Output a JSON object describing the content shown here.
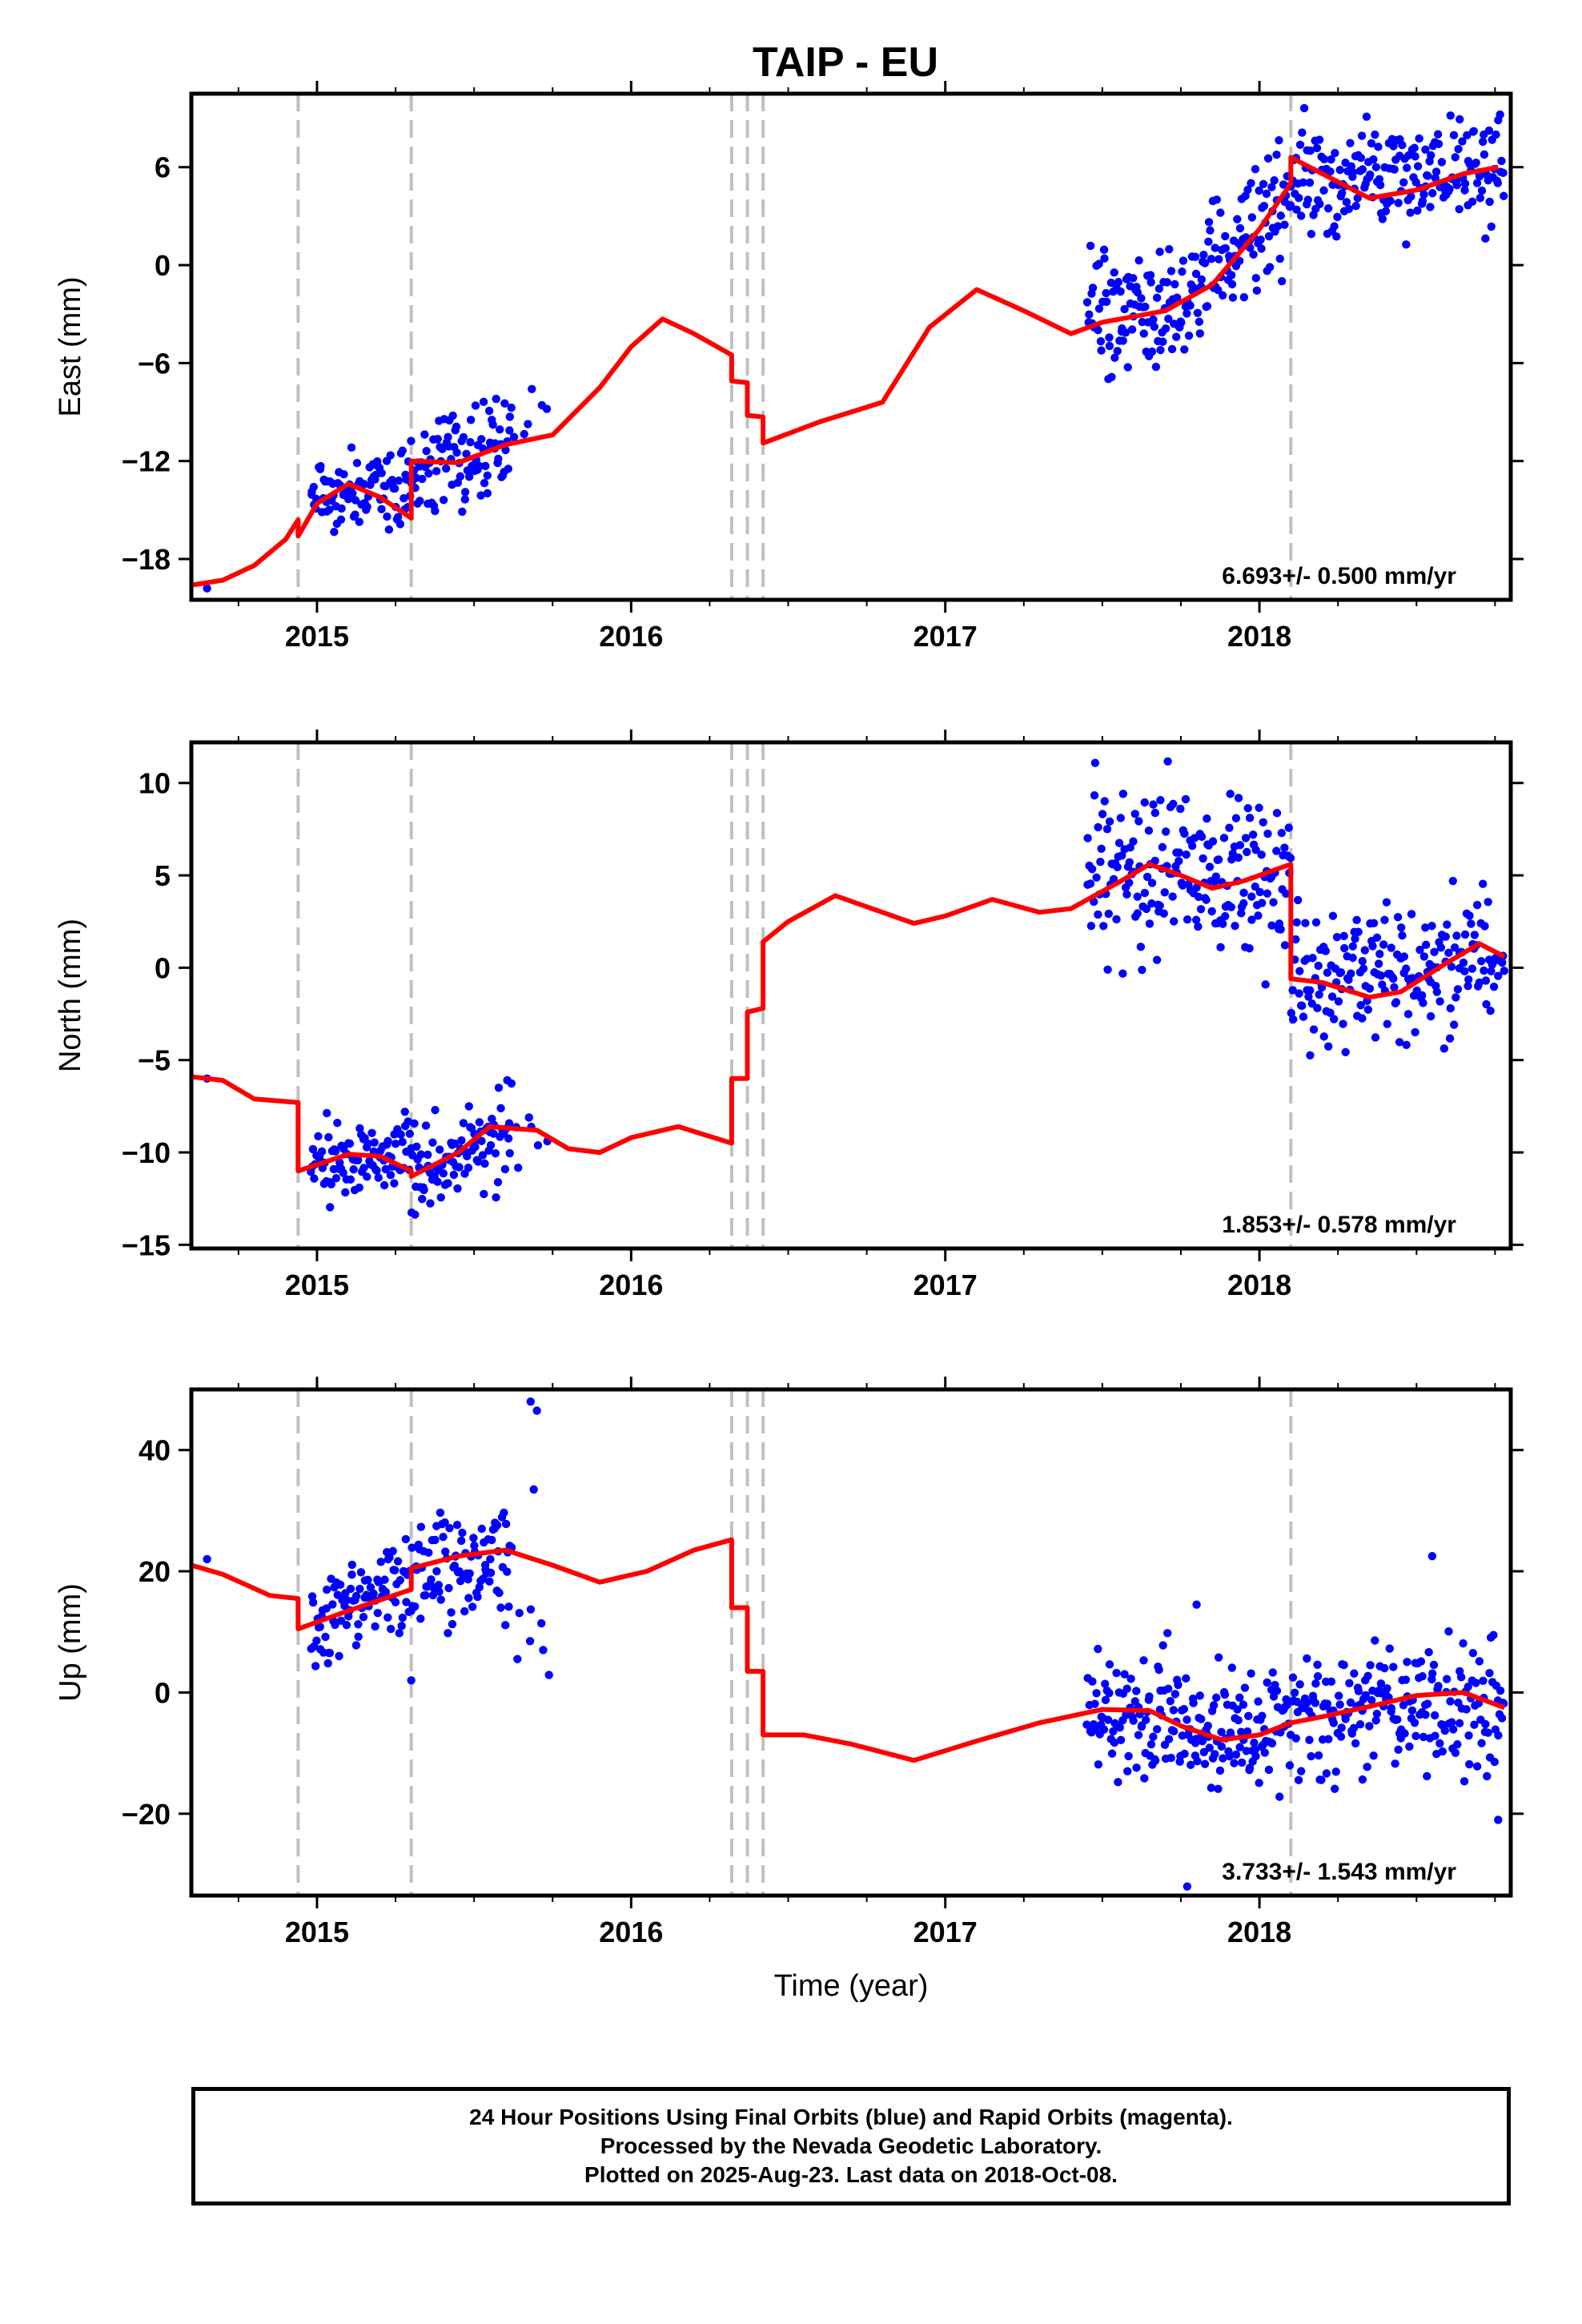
{
  "title": "TAIP - EU",
  "xlabel": "Time (year)",
  "caption": [
    "24 Hour Positions Using Final Orbits (blue) and Rapid Orbits (magenta).",
    "Processed by the Nevada Geodetic Laboratory.",
    "Plotted on 2025-Aug-23. Last data on 2018-Oct-08."
  ],
  "colors": {
    "data": "#0000ff",
    "model": "#ff0000",
    "events": "#c0c0c0",
    "frame": "#000000"
  },
  "chart_data": [
    {
      "type": "scatter",
      "panel": "east",
      "ylabel": "East (mm)",
      "xlim": [
        2014.6,
        2018.8
      ],
      "ylim": [
        -20.5,
        10.5
      ],
      "xticks": [
        2015,
        2016,
        2017,
        2018
      ],
      "yticks": [
        -18,
        -12,
        -6,
        0,
        6
      ],
      "rate_label": "6.693+/- 0.500 mm/yr",
      "event_lines": [
        2014.94,
        2015.3,
        2016.32,
        2016.37,
        2016.42,
        2018.1
      ],
      "data_segments": [
        {
          "x0": 2014.98,
          "x1": 2015.3,
          "y0": -14.2,
          "y1": -13.4,
          "noise": 1.3,
          "n": 95,
          "seed": 11
        },
        {
          "x0": 2015.3,
          "x1": 2015.62,
          "y0": -12.3,
          "y1": -10.8,
          "noise": 1.4,
          "n": 95,
          "seed": 12
        },
        {
          "x0": 2015.62,
          "x1": 2015.74,
          "y0": -9.5,
          "y1": -7.5,
          "noise": 1.2,
          "n": 6,
          "seed": 13
        },
        {
          "x0": 2017.45,
          "x1": 2017.78,
          "y0": -3.2,
          "y1": -2.2,
          "noise": 1.8,
          "n": 100,
          "seed": 14
        },
        {
          "x0": 2017.78,
          "x1": 2018.1,
          "y0": -1.2,
          "y1": 4.5,
          "noise": 1.8,
          "n": 100,
          "seed": 15
        },
        {
          "x0": 2018.1,
          "x1": 2018.78,
          "y0": 5.2,
          "y1": 5.9,
          "noise": 1.7,
          "n": 200,
          "seed": 16
        }
      ],
      "model_line": [
        [
          2014.6,
          -19.6
        ],
        [
          2014.7,
          -19.3
        ],
        [
          2014.8,
          -18.4
        ],
        [
          2014.9,
          -16.8
        ],
        [
          2014.94,
          -15.6
        ],
        [
          2014.94,
          -16.6
        ],
        [
          2015.0,
          -14.6
        ],
        [
          2015.1,
          -13.4
        ],
        [
          2015.2,
          -14.2
        ],
        [
          2015.3,
          -15.5
        ],
        [
          2015.3,
          -12.0
        ],
        [
          2015.45,
          -12.1
        ],
        [
          2015.6,
          -11.0
        ],
        [
          2015.75,
          -10.4
        ],
        [
          2015.9,
          -7.5
        ],
        [
          2016.0,
          -5.0
        ],
        [
          2016.1,
          -3.3
        ],
        [
          2016.2,
          -4.2
        ],
        [
          2016.32,
          -5.5
        ],
        [
          2016.32,
          -7.1
        ],
        [
          2016.37,
          -7.2
        ],
        [
          2016.37,
          -9.2
        ],
        [
          2016.42,
          -9.3
        ],
        [
          2016.42,
          -10.9
        ],
        [
          2016.6,
          -9.6
        ],
        [
          2016.8,
          -8.4
        ],
        [
          2016.95,
          -3.8
        ],
        [
          2017.1,
          -1.5
        ],
        [
          2017.25,
          -2.8
        ],
        [
          2017.4,
          -4.2
        ],
        [
          2017.5,
          -3.5
        ],
        [
          2017.7,
          -2.8
        ],
        [
          2017.85,
          -1.2
        ],
        [
          2018.0,
          2.2
        ],
        [
          2018.1,
          5.0
        ],
        [
          2018.1,
          6.6
        ],
        [
          2018.2,
          5.6
        ],
        [
          2018.35,
          4.1
        ],
        [
          2018.5,
          4.6
        ],
        [
          2018.65,
          5.6
        ],
        [
          2018.76,
          6.0
        ]
      ],
      "outliers": [
        [
          2014.65,
          -19.8
        ]
      ]
    },
    {
      "type": "scatter",
      "panel": "north",
      "ylabel": "North (mm)",
      "xlim": [
        2014.6,
        2018.8
      ],
      "ylim": [
        -15.2,
        12.2
      ],
      "xticks": [
        2015,
        2016,
        2017,
        2018
      ],
      "yticks": [
        -15,
        -10,
        -5,
        0,
        5,
        10
      ],
      "rate_label": "1.853+/- 0.578 mm/yr",
      "event_lines": [
        2014.94,
        2015.3,
        2016.32,
        2016.37,
        2016.42,
        2018.1
      ],
      "data_segments": [
        {
          "x0": 2014.98,
          "x1": 2015.3,
          "y0": -10.5,
          "y1": -10.0,
          "noise": 1.0,
          "n": 95,
          "seed": 21
        },
        {
          "x0": 2015.3,
          "x1": 2015.62,
          "y0": -11.3,
          "y1": -8.6,
          "noise": 1.4,
          "n": 95,
          "seed": 22
        },
        {
          "x0": 2015.62,
          "x1": 2015.74,
          "y0": -9.0,
          "y1": -9.2,
          "noise": 1.0,
          "n": 6,
          "seed": 23
        },
        {
          "x0": 2017.45,
          "x1": 2017.78,
          "y0": 4.8,
          "y1": 6.0,
          "noise": 2.3,
          "n": 100,
          "seed": 24
        },
        {
          "x0": 2017.78,
          "x1": 2018.1,
          "y0": 5.0,
          "y1": 5.0,
          "noise": 2.3,
          "n": 100,
          "seed": 25
        },
        {
          "x0": 2018.1,
          "x1": 2018.78,
          "y0": -0.8,
          "y1": 0.6,
          "noise": 1.9,
          "n": 200,
          "seed": 26
        }
      ],
      "model_line": [
        [
          2014.6,
          -5.9
        ],
        [
          2014.7,
          -6.1
        ],
        [
          2014.8,
          -7.1
        ],
        [
          2014.94,
          -7.3
        ],
        [
          2014.94,
          -11.0
        ],
        [
          2015.1,
          -10.1
        ],
        [
          2015.2,
          -10.2
        ],
        [
          2015.3,
          -11.0
        ],
        [
          2015.3,
          -11.3
        ],
        [
          2015.45,
          -10.0
        ],
        [
          2015.55,
          -8.6
        ],
        [
          2015.7,
          -8.8
        ],
        [
          2015.8,
          -9.8
        ],
        [
          2015.9,
          -10.0
        ],
        [
          2016.0,
          -9.2
        ],
        [
          2016.15,
          -8.6
        ],
        [
          2016.32,
          -9.5
        ],
        [
          2016.32,
          -6.0
        ],
        [
          2016.37,
          -6.0
        ],
        [
          2016.37,
          -2.4
        ],
        [
          2016.42,
          -2.2
        ],
        [
          2016.42,
          1.4
        ],
        [
          2016.5,
          2.5
        ],
        [
          2016.65,
          3.9
        ],
        [
          2016.75,
          3.3
        ],
        [
          2016.9,
          2.4
        ],
        [
          2017.0,
          2.8
        ],
        [
          2017.15,
          3.7
        ],
        [
          2017.3,
          3.0
        ],
        [
          2017.4,
          3.2
        ],
        [
          2017.55,
          4.6
        ],
        [
          2017.65,
          5.6
        ],
        [
          2017.75,
          5.0
        ],
        [
          2017.85,
          4.3
        ],
        [
          2017.95,
          4.7
        ],
        [
          2018.1,
          5.6
        ],
        [
          2018.1,
          -0.6
        ],
        [
          2018.2,
          -0.8
        ],
        [
          2018.35,
          -1.6
        ],
        [
          2018.45,
          -1.3
        ],
        [
          2018.6,
          0.3
        ],
        [
          2018.7,
          1.3
        ],
        [
          2018.78,
          0.6
        ]
      ],
      "outliers": [
        [
          2014.65,
          -6.0
        ]
      ]
    },
    {
      "type": "scatter",
      "panel": "up",
      "ylabel": "Up (mm)",
      "xlabel": "Time (year)",
      "xlim": [
        2014.6,
        2018.8
      ],
      "ylim": [
        -33.5,
        50
      ],
      "xticks": [
        2015,
        2016,
        2017,
        2018
      ],
      "yticks": [
        -20,
        0,
        20,
        40
      ],
      "rate_label": "3.733+/- 1.543 mm/yr",
      "event_lines": [
        2014.94,
        2015.3,
        2016.32,
        2016.37,
        2016.42,
        2018.1
      ],
      "data_segments": [
        {
          "x0": 2014.98,
          "x1": 2015.3,
          "y0": 11.5,
          "y1": 18.0,
          "noise": 3.6,
          "n": 95,
          "seed": 31
        },
        {
          "x0": 2015.3,
          "x1": 2015.62,
          "y0": 21.0,
          "y1": 23.0,
          "noise": 4.8,
          "n": 95,
          "seed": 32
        },
        {
          "x0": 2015.62,
          "x1": 2015.74,
          "y0": 18.0,
          "y1": 10.0,
          "noise": 5.0,
          "n": 6,
          "seed": 33
        },
        {
          "x0": 2017.45,
          "x1": 2017.78,
          "y0": -3.0,
          "y1": -4.0,
          "noise": 5.0,
          "n": 100,
          "seed": 34
        },
        {
          "x0": 2017.78,
          "x1": 2018.1,
          "y0": -7.0,
          "y1": -5.0,
          "noise": 5.0,
          "n": 100,
          "seed": 35
        },
        {
          "x0": 2018.1,
          "x1": 2018.78,
          "y0": -4.0,
          "y1": -1.0,
          "noise": 5.2,
          "n": 200,
          "seed": 36
        }
      ],
      "model_line": [
        [
          2014.6,
          21.0
        ],
        [
          2014.7,
          19.5
        ],
        [
          2014.85,
          16.0
        ],
        [
          2014.94,
          15.5
        ],
        [
          2014.94,
          10.5
        ],
        [
          2015.1,
          13.5
        ],
        [
          2015.3,
          17.0
        ],
        [
          2015.3,
          20.5
        ],
        [
          2015.45,
          22.5
        ],
        [
          2015.6,
          23.5
        ],
        [
          2015.75,
          21.0
        ],
        [
          2015.9,
          18.2
        ],
        [
          2016.05,
          20.0
        ],
        [
          2016.2,
          23.5
        ],
        [
          2016.32,
          25.2
        ],
        [
          2016.32,
          14.0
        ],
        [
          2016.37,
          14.0
        ],
        [
          2016.37,
          3.5
        ],
        [
          2016.42,
          3.5
        ],
        [
          2016.42,
          -7.0
        ],
        [
          2016.55,
          -7.0
        ],
        [
          2016.7,
          -8.5
        ],
        [
          2016.9,
          -11.2
        ],
        [
          2017.1,
          -8.0
        ],
        [
          2017.3,
          -5.0
        ],
        [
          2017.5,
          -2.8
        ],
        [
          2017.65,
          -3.0
        ],
        [
          2017.75,
          -5.5
        ],
        [
          2017.88,
          -7.8
        ],
        [
          2018.0,
          -7.0
        ],
        [
          2018.1,
          -5.0
        ],
        [
          2018.2,
          -4.0
        ],
        [
          2018.35,
          -2.3
        ],
        [
          2018.5,
          -0.5
        ],
        [
          2018.65,
          0.0
        ],
        [
          2018.78,
          -2.5
        ]
      ],
      "outliers": [
        [
          2014.65,
          22.0
        ],
        [
          2015.3,
          2.0
        ],
        [
          2015.68,
          48.0
        ],
        [
          2015.7,
          46.5
        ],
        [
          2015.69,
          33.5
        ],
        [
          2015.72,
          7.0
        ],
        [
          2017.77,
          -32.0
        ],
        [
          2017.8,
          14.5
        ],
        [
          2018.55,
          22.5
        ],
        [
          2018.76,
          -21.0
        ]
      ]
    }
  ]
}
